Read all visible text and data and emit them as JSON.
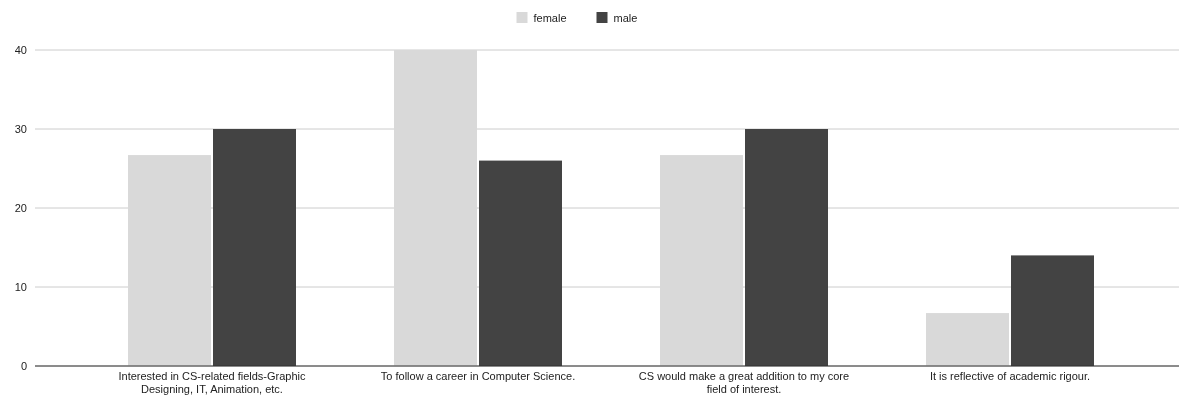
{
  "chart_data": {
    "type": "bar",
    "categories": [
      "Interested in CS-related fields-Graphic Designing, IT, Animation, etc.",
      "To follow a career in Computer Science.",
      "CS would make a great addition to my core field of interest.",
      "It is reflective of academic rigour."
    ],
    "series": [
      {
        "name": "female",
        "color": "#d9d9d9",
        "values": [
          26.7,
          40,
          26.7,
          6.7
        ]
      },
      {
        "name": "male",
        "color": "#434343",
        "values": [
          30,
          26,
          30,
          14
        ]
      }
    ],
    "ylim": [
      0,
      40
    ],
    "yticks": [
      0,
      10,
      20,
      30,
      40
    ],
    "grid": "y",
    "legend": "top"
  }
}
